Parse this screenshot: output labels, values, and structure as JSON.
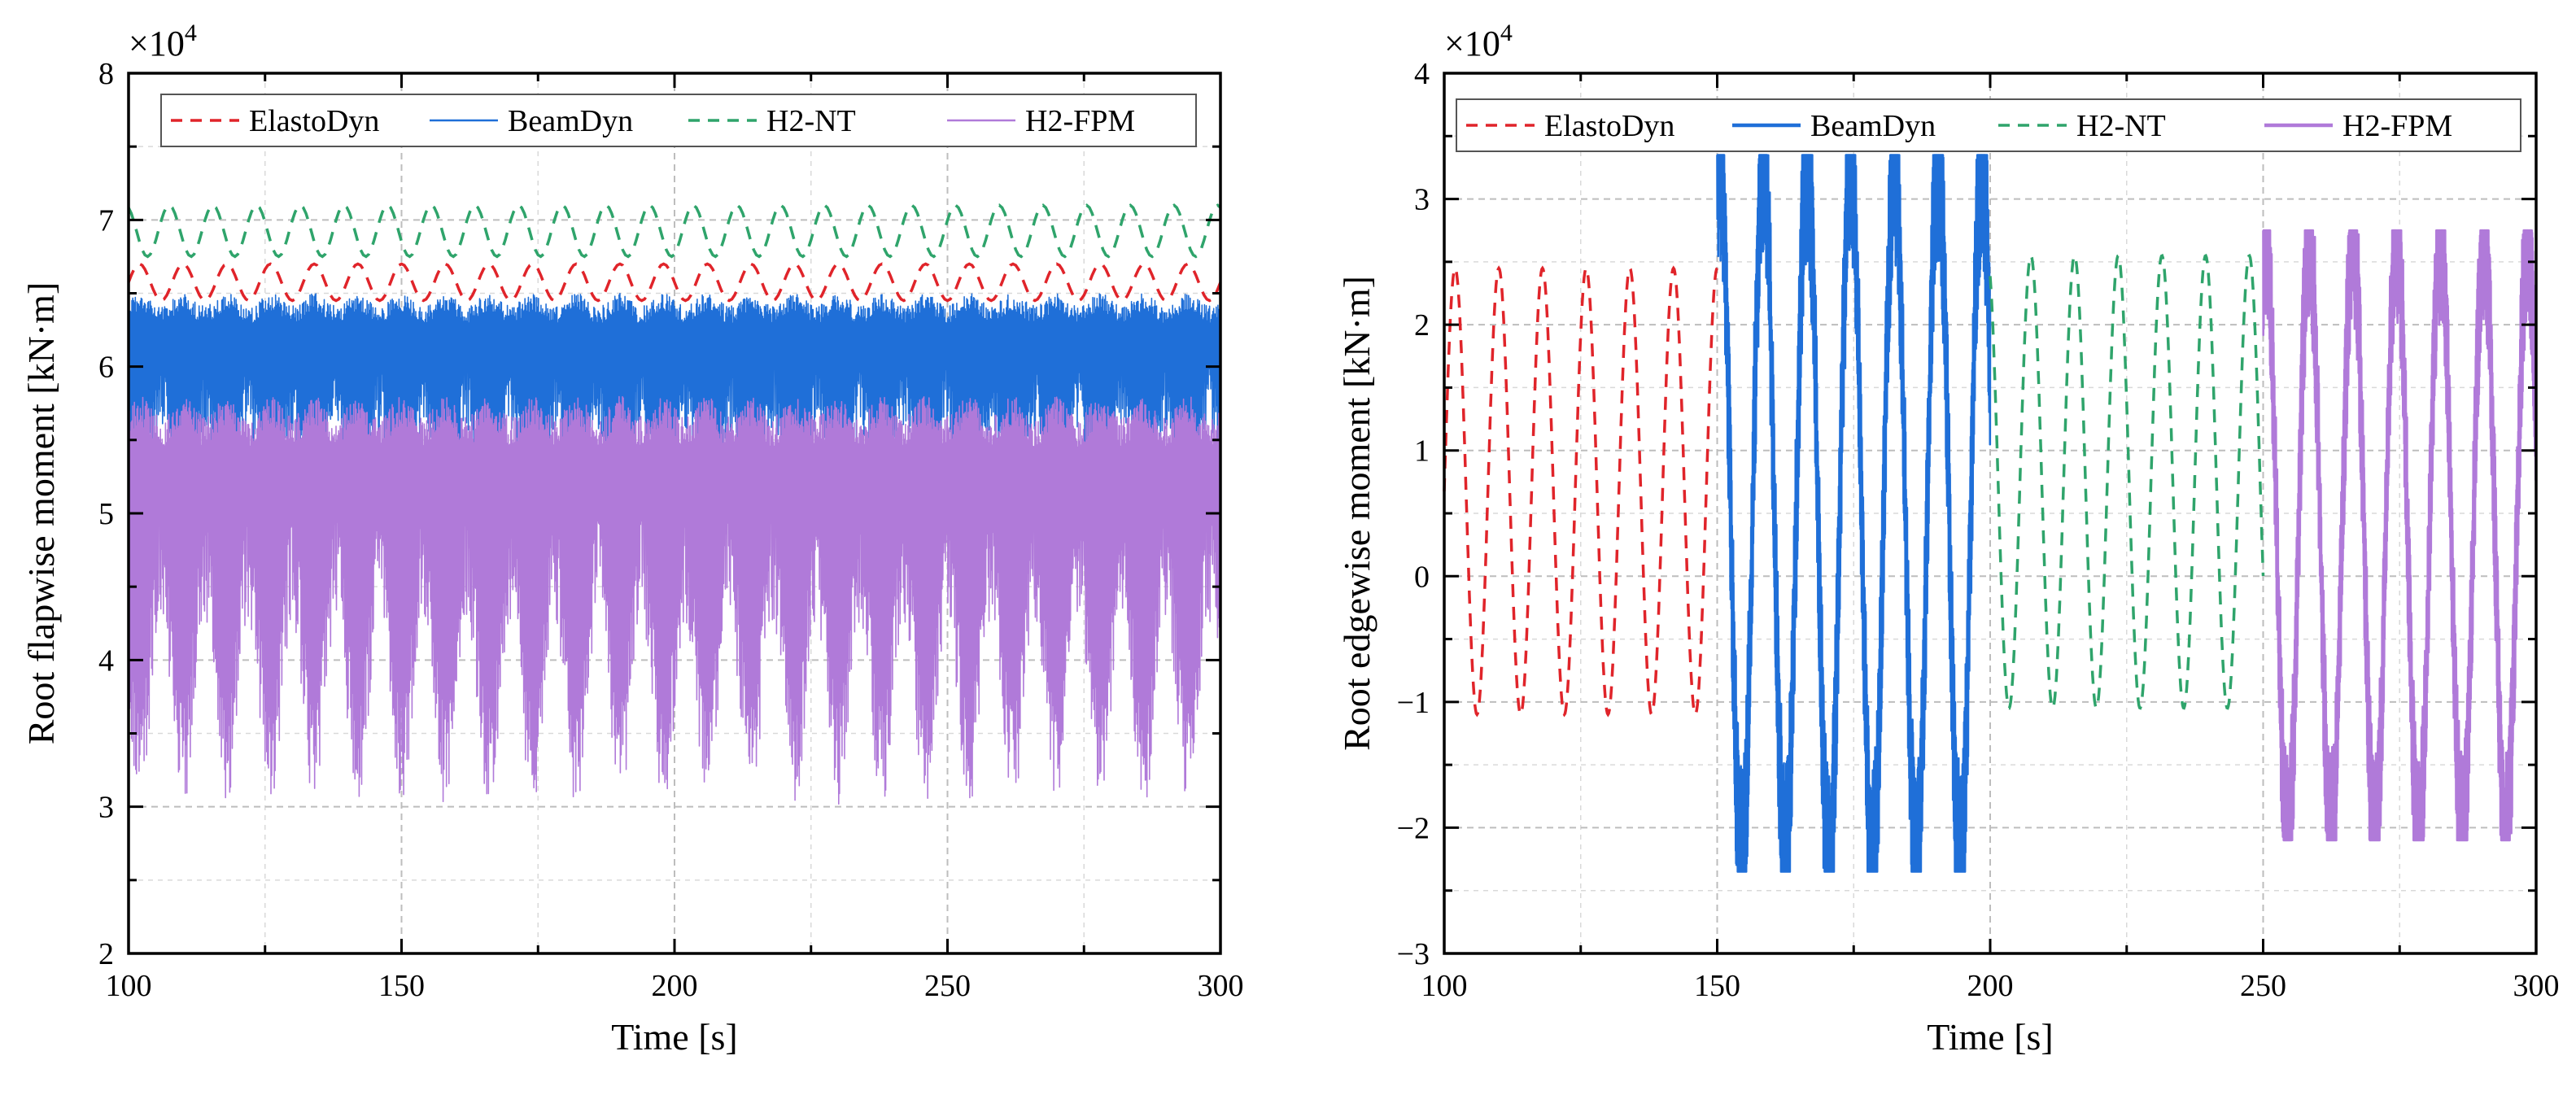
{
  "colors": {
    "ElastoDyn": "#e0242a",
    "BeamDyn": "#1f6fd8",
    "H2-NT": "#2fa46b",
    "H2-FPM": "#b07ad9",
    "grid": "#bdbdbd",
    "axis": "#000000"
  },
  "chart_data": [
    {
      "type": "line",
      "xlabel": "Time [s]",
      "ylabel": "Root flapwise moment [kN·m]",
      "y_multiplier": "×10",
      "y_multiplier_exp": "4",
      "xlim": [
        100,
        300
      ],
      "ylim": [
        2,
        8
      ],
      "xticks": [
        100,
        150,
        200,
        250,
        300
      ],
      "yticks": [
        2,
        3,
        4,
        5,
        6,
        7,
        8
      ],
      "grid": true,
      "legend_placement": "top-right",
      "series": [
        {
          "name": "ElastoDyn",
          "style": "dashed",
          "period": 8,
          "min": 6.45,
          "max": 6.7
        },
        {
          "name": "BeamDyn",
          "style": "solid",
          "period": 8,
          "min": 4.8,
          "max": 6.5
        },
        {
          "name": "H2-NT",
          "style": "dashed",
          "period": 8,
          "min": 6.75,
          "max": 7.1
        },
        {
          "name": "H2-FPM",
          "style": "solid",
          "period": 8,
          "min": 3.0,
          "max": 5.8
        }
      ]
    },
    {
      "type": "line",
      "xlabel": "Time [s]",
      "ylabel": "Root edgewise moment [kN·m]",
      "y_multiplier": "×10",
      "y_multiplier_exp": "4",
      "xlim": [
        100,
        300
      ],
      "ylim": [
        -3,
        4
      ],
      "xticks": [
        100,
        150,
        200,
        250,
        300
      ],
      "yticks": [
        -3,
        -2,
        -1,
        0,
        1,
        2,
        3,
        4
      ],
      "grid": true,
      "legend_placement": "top",
      "series": [
        {
          "name": "ElastoDyn",
          "style": "dashed",
          "x_range": [
            100,
            150
          ],
          "period": 8,
          "min": -1.1,
          "max": 2.45
        },
        {
          "name": "BeamDyn",
          "style": "solid",
          "x_range": [
            150,
            200
          ],
          "period": 8,
          "min": -2.35,
          "max": 3.35
        },
        {
          "name": "H2-NT",
          "style": "dashed",
          "x_range": [
            200,
            250
          ],
          "period": 8,
          "min": -1.05,
          "max": 2.55
        },
        {
          "name": "H2-FPM",
          "style": "solid",
          "x_range": [
            250,
            300
          ],
          "period": 8,
          "min": -2.1,
          "max": 2.75
        }
      ]
    }
  ]
}
